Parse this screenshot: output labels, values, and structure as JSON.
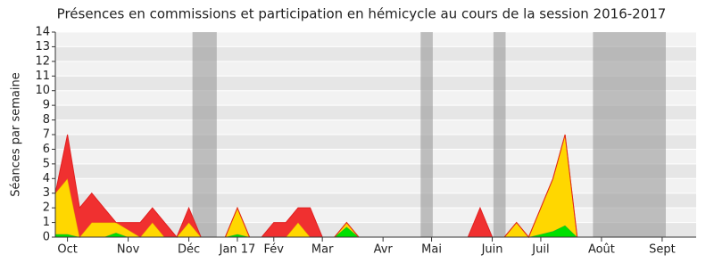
{
  "chart_data": {
    "type": "stacked_area",
    "title": "Présences en commissions et participation en hémicycle au cours de la session 2016-2017",
    "y_label": "Séances par semaine",
    "x": [
      0,
      1,
      2,
      3,
      4,
      5,
      6,
      7,
      8,
      9,
      10,
      11,
      12,
      13,
      14,
      15,
      16,
      17,
      18,
      19,
      20,
      21,
      22,
      23,
      24,
      25,
      26,
      27,
      28,
      29,
      30,
      31,
      32,
      33,
      34,
      35,
      36,
      37,
      38,
      39,
      40,
      41,
      42,
      43
    ],
    "series": [
      {
        "color": "#00e000",
        "values": [
          0.2,
          0.2,
          0,
          0,
          0,
          0.3,
          0,
          0,
          0,
          0,
          0,
          0,
          0,
          0,
          0,
          0.2,
          0,
          0,
          0,
          0,
          0,
          0,
          0,
          0,
          0.7,
          0,
          0,
          0,
          0,
          0,
          0,
          0,
          0,
          0,
          0,
          0,
          0,
          0,
          0,
          0,
          0.2,
          0.4,
          0.8,
          0
        ]
      },
      {
        "color": "#ffd700",
        "values": [
          2.8,
          3.8,
          0,
          1,
          1,
          0.7,
          0.5,
          0,
          1,
          0,
          0,
          1,
          0,
          0,
          0,
          1.8,
          0,
          0,
          0,
          0,
          1,
          0,
          0,
          0,
          0.3,
          0,
          0,
          0,
          0,
          0,
          0,
          0,
          0,
          0,
          0,
          0,
          0,
          0,
          1,
          0,
          1.8,
          3.6,
          6.2,
          0
        ]
      },
      {
        "color": "#f03030",
        "values": [
          0,
          3,
          2,
          2,
          1,
          0,
          0.5,
          1,
          1,
          1,
          0,
          1,
          0,
          0,
          0,
          0,
          0,
          0,
          1,
          1,
          1,
          2,
          0,
          0,
          0,
          0,
          0,
          0,
          0,
          0,
          0,
          0,
          0,
          0,
          0,
          2,
          0,
          0,
          0,
          0,
          0,
          0,
          0,
          0
        ]
      }
    ],
    "vacations": [
      [
        11.3,
        13.3
      ],
      [
        30.1,
        31.1
      ],
      [
        36.1,
        37.1
      ],
      [
        44.3,
        50.3
      ]
    ],
    "xlim": [
      0,
      52.8
    ],
    "xticks": [
      {
        "value": 1,
        "label": "Oct"
      },
      {
        "value": 6,
        "label": "Nov"
      },
      {
        "value": 11,
        "label": "Déc"
      },
      {
        "value": 15,
        "label": "Jan 17"
      },
      {
        "value": 18,
        "label": "Fév"
      },
      {
        "value": 22,
        "label": "Mar"
      },
      {
        "value": 27,
        "label": "Avr"
      },
      {
        "value": 31,
        "label": "Mai"
      },
      {
        "value": 36,
        "label": "Juin"
      },
      {
        "value": 40,
        "label": "Juil"
      },
      {
        "value": 45,
        "label": "Août"
      },
      {
        "value": 50,
        "label": "Sept"
      }
    ],
    "ylim": [
      0,
      14
    ],
    "yticks": [
      0,
      1,
      2,
      3,
      4,
      5,
      6,
      7,
      8,
      9,
      10,
      11,
      12,
      13,
      14
    ],
    "grid": true
  }
}
